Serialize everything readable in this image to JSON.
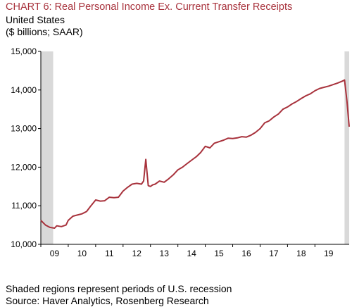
{
  "header": {
    "title": "CHART 6: Real Personal Income Ex. Current Transfer Receipts",
    "subtitle1": "United States",
    "subtitle2": "($ billions; SAAR)"
  },
  "footer": {
    "note": "Shaded regions represent periods of U.S. recession",
    "source": "Source: Haver Analytics, Rosenberg Research"
  },
  "colors": {
    "line": "#a8323c",
    "recession": "#d9d9d9",
    "axis": "#000000"
  },
  "chart_data": {
    "type": "line",
    "title": "CHART 6: Real Personal Income Ex. Current Transfer Receipts",
    "subtitle": "United States ($ billions; SAAR)",
    "xlabel": "",
    "ylabel": "",
    "xlim": [
      2009,
      2020.25
    ],
    "ylim": [
      10000,
      15000
    ],
    "y_ticks": [
      10000,
      11000,
      12000,
      13000,
      14000,
      15000
    ],
    "y_tick_labels": [
      "10,000",
      "11,000",
      "12,000",
      "13,000",
      "14,000",
      "15,000"
    ],
    "x_ticks": [
      2009,
      2010,
      2011,
      2012,
      2013,
      2014,
      2015,
      2016,
      2017,
      2018,
      2019
    ],
    "x_tick_labels": [
      "09",
      "10",
      "11",
      "12",
      "13",
      "14",
      "15",
      "16",
      "17",
      "18",
      "19"
    ],
    "grid": false,
    "legend": "none",
    "recessions": [
      [
        2009.0,
        2009.45
      ],
      [
        2020.08,
        2020.25
      ]
    ],
    "series": [
      {
        "x": [
          2009.0,
          2009.17,
          2009.33,
          2009.5,
          2009.58,
          2009.75,
          2009.92,
          2010.0,
          2010.17,
          2010.33,
          2010.5,
          2010.67,
          2010.83,
          2011.0,
          2011.17,
          2011.33,
          2011.5,
          2011.67,
          2011.83,
          2012.0,
          2012.17,
          2012.33,
          2012.5,
          2012.67,
          2012.75,
          2012.83,
          2012.92,
          2013.0,
          2013.08,
          2013.17,
          2013.33,
          2013.5,
          2013.67,
          2013.83,
          2014.0,
          2014.17,
          2014.33,
          2014.5,
          2014.67,
          2014.83,
          2015.0,
          2015.17,
          2015.33,
          2015.5,
          2015.67,
          2015.83,
          2016.0,
          2016.17,
          2016.33,
          2016.5,
          2016.67,
          2016.83,
          2017.0,
          2017.17,
          2017.33,
          2017.5,
          2017.67,
          2017.83,
          2018.0,
          2018.17,
          2018.33,
          2018.5,
          2018.67,
          2018.83,
          2019.0,
          2019.17,
          2019.33,
          2019.5,
          2019.67,
          2019.83,
          2020.0,
          2020.08,
          2020.17,
          2020.25
        ],
        "values": [
          10620,
          10500,
          10440,
          10420,
          10480,
          10460,
          10500,
          10620,
          10730,
          10760,
          10790,
          10850,
          11000,
          11150,
          11120,
          11130,
          11220,
          11210,
          11220,
          11380,
          11480,
          11560,
          11580,
          11560,
          11640,
          12200,
          11520,
          11500,
          11540,
          11560,
          11640,
          11610,
          11700,
          11800,
          11930,
          12000,
          12090,
          12180,
          12270,
          12380,
          12540,
          12500,
          12620,
          12660,
          12700,
          12750,
          12740,
          12760,
          12790,
          12780,
          12830,
          12900,
          13000,
          13150,
          13200,
          13300,
          13380,
          13500,
          13560,
          13640,
          13700,
          13780,
          13850,
          13900,
          13980,
          14040,
          14070,
          14100,
          14140,
          14180,
          14230,
          14260,
          13700,
          13050
        ]
      }
    ]
  }
}
